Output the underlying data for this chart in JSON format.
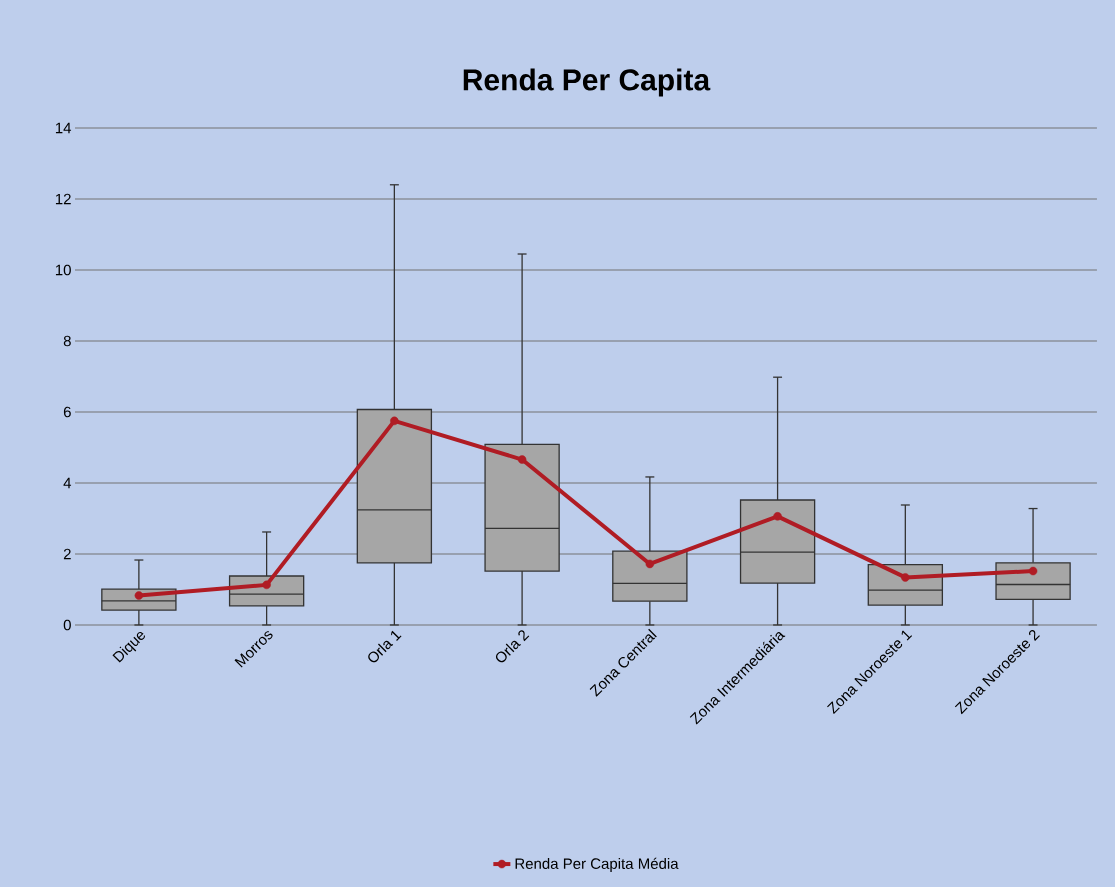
{
  "chart_data": {
    "type": "box",
    "title": "Renda Per Capita",
    "categories": [
      "Dique",
      "Morros",
      "Orla 1",
      "Orla 2",
      "Zona Central",
      "Zona Intermediária",
      "Zona Noroeste 1",
      "Zona Noroeste 2"
    ],
    "color": "#a6a6a6",
    "boxes": [
      {
        "low": 0,
        "q1": 0.42,
        "median": 0.68,
        "q3": 1.01,
        "high": 1.83
      },
      {
        "low": 0,
        "q1": 0.54,
        "median": 0.87,
        "q3": 1.38,
        "high": 2.62
      },
      {
        "low": 0,
        "q1": 1.75,
        "median": 3.24,
        "q3": 6.07,
        "high": 12.4
      },
      {
        "low": 0,
        "q1": 1.52,
        "median": 2.72,
        "q3": 5.09,
        "high": 10.45
      },
      {
        "low": 0,
        "q1": 0.67,
        "median": 1.17,
        "q3": 2.08,
        "high": 4.17
      },
      {
        "low": 0,
        "q1": 1.18,
        "median": 2.05,
        "q3": 3.52,
        "high": 6.98
      },
      {
        "low": 0,
        "q1": 0.56,
        "median": 0.98,
        "q3": 1.7,
        "high": 3.38
      },
      {
        "low": 0,
        "q1": 0.72,
        "median": 1.14,
        "q3": 1.75,
        "high": 3.28
      }
    ],
    "series": [
      {
        "type": "line",
        "name": "Renda Per Capita Média",
        "color": "#b01c24",
        "values": [
          0.83,
          1.13,
          5.75,
          4.66,
          1.72,
          3.06,
          1.34,
          1.52
        ]
      }
    ],
    "marker": "circle",
    "ylim": [
      0,
      14
    ],
    "yticks": [
      0,
      2,
      4,
      6,
      8,
      10,
      12,
      14
    ],
    "grid": "y",
    "legend": "bottom"
  }
}
